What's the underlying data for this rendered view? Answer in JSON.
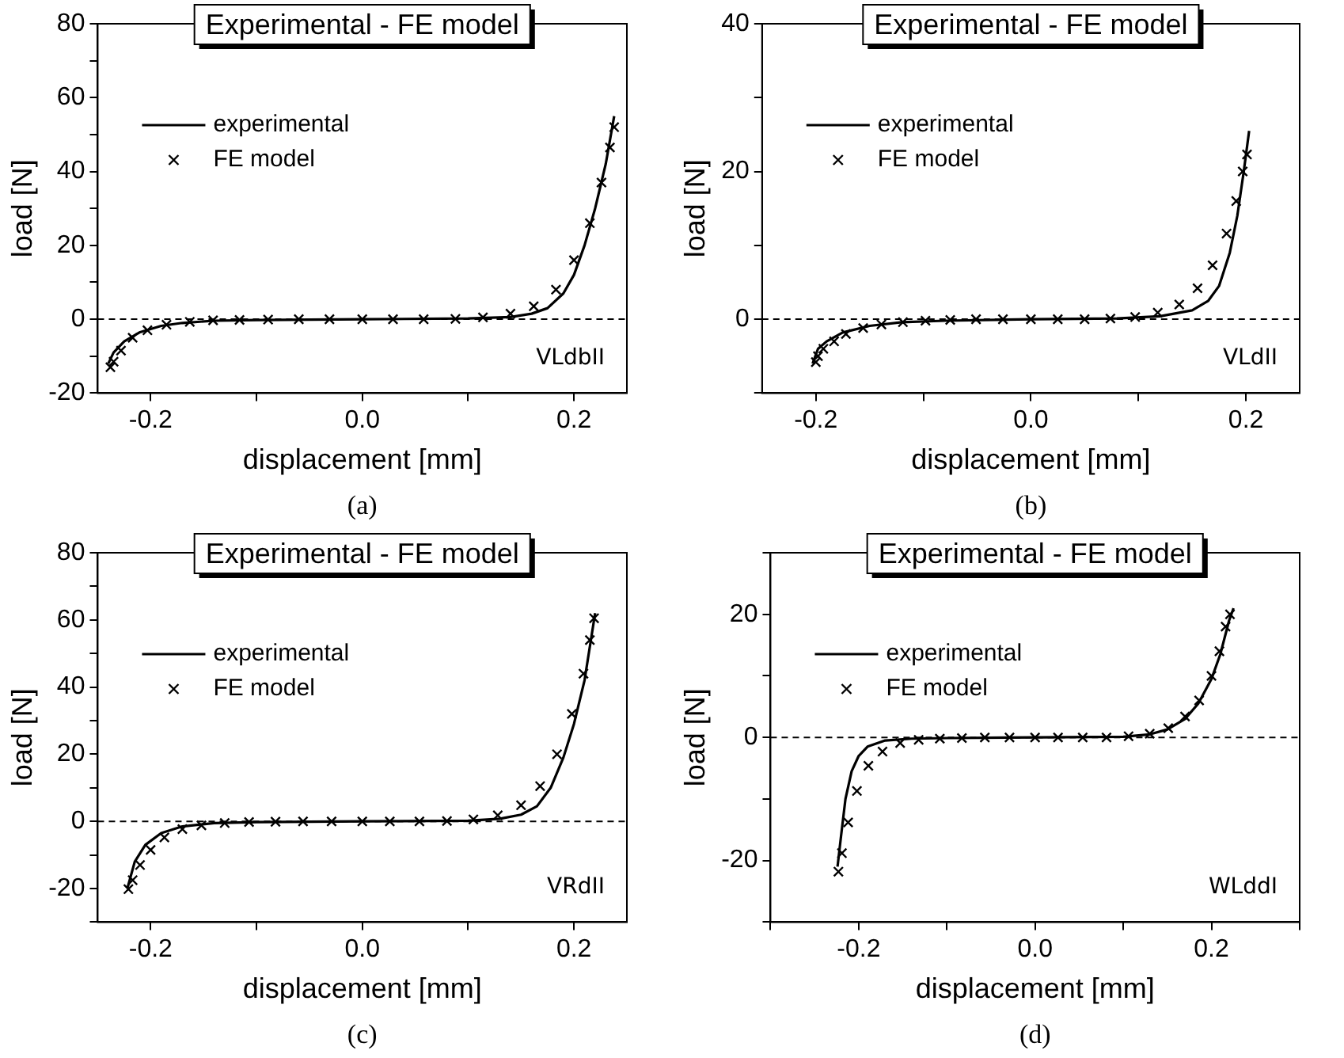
{
  "chart_data": [
    {
      "type": "scatter",
      "title": "Experimental - FE model",
      "xlabel": "displacement [mm]",
      "ylabel": "load [N]",
      "annotations": [
        "VLdbII",
        "(a)"
      ],
      "legend": "top left",
      "grid": false,
      "xlim": [
        -0.25,
        0.25
      ],
      "xticks": [
        {
          "value": -0.2,
          "label": "-0.2"
        },
        {
          "value": -0.1,
          "label": null
        },
        {
          "value": 0,
          "label": "0.0"
        },
        {
          "value": 0.1,
          "label": null
        },
        {
          "value": 0.2,
          "label": "0.2"
        }
      ],
      "ylim": [
        -20,
        80
      ],
      "yticks": [
        -20,
        {
          "value": -10,
          "label": null
        },
        0,
        {
          "value": 10,
          "label": null
        },
        20,
        {
          "value": 30,
          "label": null
        },
        40,
        {
          "value": 50,
          "label": null
        },
        60,
        {
          "value": 70,
          "label": null
        },
        80
      ],
      "ref_lines": [
        {
          "axis": "y",
          "value": 0,
          "line_style": "dashed"
        }
      ],
      "series": [
        {
          "name": "experimental",
          "type": "line",
          "marker": "none",
          "color": "#000000",
          "x": [
            -0.24,
            -0.235,
            -0.225,
            -0.21,
            -0.19,
            -0.17,
            -0.14,
            -0.1,
            0,
            0.1,
            0.14,
            0.16,
            0.175,
            0.19,
            0.2,
            0.21,
            0.22,
            0.23,
            0.238
          ],
          "values": [
            -12,
            -9,
            -6,
            -3.5,
            -1.8,
            -1,
            -0.4,
            -0.2,
            0,
            0.2,
            0.6,
            1.5,
            3,
            7,
            12,
            20,
            30,
            42,
            55
          ]
        },
        {
          "name": "FE model",
          "marker": "cross",
          "color": "#000000",
          "x": [
            -0.238,
            -0.235,
            -0.228,
            -0.217,
            -0.203,
            -0.185,
            -0.163,
            -0.141,
            -0.116,
            -0.089,
            -0.06,
            -0.031,
            0,
            0.029,
            0.058,
            0.088,
            0.114,
            0.14,
            0.162,
            0.183,
            0.2,
            0.215,
            0.226,
            0.234,
            0.238
          ],
          "values": [
            -13,
            -11.5,
            -8.5,
            -5,
            -3,
            -1.5,
            -0.7,
            -0.3,
            -0.2,
            -0.1,
            0,
            0,
            0,
            0,
            0,
            0.1,
            0.5,
            1.5,
            3.5,
            8,
            16,
            26,
            37,
            46.5,
            52
          ]
        }
      ]
    },
    {
      "type": "scatter",
      "title": "Experimental - FE model",
      "xlabel": "displacement [mm]",
      "ylabel": "load [N]",
      "annotations": [
        "VLdII",
        "(b)"
      ],
      "legend": "top left",
      "grid": false,
      "xlim": [
        -0.25,
        0.25
      ],
      "xticks": [
        {
          "value": -0.2,
          "label": "-0.2"
        },
        {
          "value": -0.1,
          "label": null
        },
        {
          "value": 0,
          "label": "0.0"
        },
        {
          "value": 0.1,
          "label": null
        },
        {
          "value": 0.2,
          "label": "0.2"
        }
      ],
      "ylim": [
        -10,
        40
      ],
      "yticks": [
        {
          "value": -10,
          "label": null
        },
        0,
        {
          "value": 10,
          "label": null
        },
        20,
        {
          "value": 30,
          "label": null
        },
        40
      ],
      "ref_lines": [
        {
          "axis": "y",
          "value": 0,
          "line_style": "dashed"
        }
      ],
      "series": [
        {
          "name": "experimental",
          "type": "line",
          "marker": "none",
          "color": "#000000",
          "x": [
            -0.203,
            -0.198,
            -0.19,
            -0.175,
            -0.15,
            -0.12,
            -0.08,
            0,
            0.08,
            0.12,
            0.15,
            0.165,
            0.175,
            0.185,
            0.192,
            0.198,
            0.203
          ],
          "values": [
            -6,
            -4,
            -3,
            -1.8,
            -0.9,
            -0.4,
            -0.2,
            0,
            0.1,
            0.4,
            1.2,
            2.5,
            4.5,
            9,
            14,
            20,
            25.5
          ]
        },
        {
          "name": "FE model",
          "marker": "cross",
          "color": "#000000",
          "x": [
            -0.2,
            -0.198,
            -0.193,
            -0.183,
            -0.172,
            -0.156,
            -0.139,
            -0.119,
            -0.098,
            -0.075,
            -0.051,
            -0.026,
            0,
            0.025,
            0.05,
            0.074,
            0.097,
            0.118,
            0.138,
            0.155,
            0.169,
            0.182,
            0.191,
            0.197,
            0.201
          ],
          "values": [
            -5.8,
            -5,
            -4,
            -3,
            -2,
            -1.2,
            -0.7,
            -0.4,
            -0.2,
            -0.1,
            0,
            0,
            0,
            0,
            0,
            0.1,
            0.3,
            0.9,
            2,
            4.2,
            7.3,
            11.6,
            16,
            20,
            22.3
          ]
        }
      ]
    },
    {
      "type": "scatter",
      "title": "Experimental - FE model",
      "xlabel": "displacement [mm]",
      "ylabel": "load [N]",
      "annotations": [
        "VRdII",
        "(c)"
      ],
      "legend": "top left",
      "grid": false,
      "xlim": [
        -0.25,
        0.25
      ],
      "xticks": [
        {
          "value": -0.2,
          "label": "-0.2"
        },
        {
          "value": -0.1,
          "label": null
        },
        {
          "value": 0,
          "label": "0.0"
        },
        {
          "value": 0.1,
          "label": null
        },
        {
          "value": 0.2,
          "label": "0.2"
        }
      ],
      "ylim": [
        -30,
        80
      ],
      "yticks": [
        {
          "value": -30,
          "label": null
        },
        -20,
        {
          "value": -10,
          "label": null
        },
        0,
        {
          "value": 10,
          "label": null
        },
        20,
        {
          "value": 30,
          "label": null
        },
        40,
        {
          "value": 50,
          "label": null
        },
        60,
        {
          "value": 70,
          "label": null
        },
        80
      ],
      "ref_lines": [
        {
          "axis": "y",
          "value": 0,
          "line_style": "dashed"
        }
      ],
      "series": [
        {
          "name": "experimental",
          "type": "line",
          "marker": "none",
          "color": "#000000",
          "x": [
            -0.222,
            -0.215,
            -0.205,
            -0.19,
            -0.17,
            -0.14,
            -0.1,
            0,
            0.1,
            0.13,
            0.15,
            0.165,
            0.178,
            0.19,
            0.2,
            0.21,
            0.22
          ],
          "values": [
            -20,
            -12,
            -7,
            -3.5,
            -1.5,
            -0.5,
            -0.2,
            0,
            0.2,
            0.8,
            2,
            4.5,
            10,
            19,
            29,
            42,
            62
          ]
        },
        {
          "name": "FE model",
          "marker": "cross",
          "color": "#000000",
          "x": [
            -0.221,
            -0.217,
            -0.21,
            -0.2,
            -0.187,
            -0.17,
            -0.152,
            -0.13,
            -0.107,
            -0.082,
            -0.056,
            -0.029,
            0,
            0.026,
            0.054,
            0.08,
            0.105,
            0.128,
            0.15,
            0.168,
            0.184,
            0.198,
            0.209,
            0.215,
            0.219
          ],
          "values": [
            -20.2,
            -17.5,
            -13,
            -8.5,
            -4.8,
            -2.3,
            -1.2,
            -0.5,
            -0.2,
            -0.1,
            0,
            0,
            0,
            0,
            0,
            0.1,
            0.6,
            1.8,
            4.8,
            10.5,
            20,
            32,
            44,
            54,
            60.5
          ]
        }
      ]
    },
    {
      "type": "scatter",
      "title": "Experimental - FE model",
      "xlabel": "displacement [mm]",
      "ylabel": "load [N]",
      "annotations": [
        "WLddI",
        "(d)"
      ],
      "legend": "top left",
      "grid": false,
      "xlim": [
        -0.3,
        0.3
      ],
      "xticks": [
        {
          "value": -0.3,
          "label": null
        },
        {
          "value": -0.2,
          "label": "-0.2"
        },
        {
          "value": -0.1,
          "label": null
        },
        {
          "value": 0,
          "label": "0.0"
        },
        {
          "value": 0.1,
          "label": null
        },
        {
          "value": 0.2,
          "label": "0.2"
        },
        {
          "value": 0.3,
          "label": null
        }
      ],
      "ylim": [
        -30,
        30
      ],
      "yticks": [
        {
          "value": -30,
          "label": null
        },
        -20,
        {
          "value": -10,
          "label": null
        },
        0,
        {
          "value": 10,
          "label": null
        },
        20,
        {
          "value": 30,
          "label": null
        }
      ],
      "ref_lines": [
        {
          "axis": "y",
          "value": 0,
          "line_style": "dashed"
        }
      ],
      "series": [
        {
          "name": "experimental",
          "type": "line",
          "marker": "none",
          "color": "#000000",
          "x": [
            -0.224,
            -0.22,
            -0.215,
            -0.208,
            -0.2,
            -0.19,
            -0.17,
            -0.14,
            -0.1,
            0,
            0.1,
            0.13,
            0.15,
            0.17,
            0.185,
            0.2,
            0.21,
            0.22,
            0.225
          ],
          "values": [
            -21,
            -16,
            -10,
            -5.5,
            -3,
            -1.5,
            -0.5,
            -0.2,
            -0.1,
            0,
            0.1,
            0.5,
            1.3,
            3,
            5.5,
            9.5,
            13.5,
            19,
            21
          ]
        },
        {
          "name": "FE model",
          "marker": "cross",
          "color": "#000000",
          "x": [
            -0.223,
            -0.219,
            -0.212,
            -0.202,
            -0.189,
            -0.173,
            -0.153,
            -0.132,
            -0.108,
            -0.083,
            -0.057,
            -0.029,
            0,
            0.026,
            0.054,
            0.081,
            0.106,
            0.13,
            0.151,
            0.17,
            0.186,
            0.2,
            0.209,
            0.216,
            0.221
          ],
          "values": [
            -21.8,
            -18.8,
            -13.8,
            -8.7,
            -4.6,
            -2.3,
            -0.9,
            -0.4,
            -0.2,
            -0.1,
            0,
            0,
            0,
            0,
            0,
            0,
            0.2,
            0.6,
            1.5,
            3.4,
            6,
            10,
            14,
            18,
            20
          ]
        }
      ]
    }
  ]
}
